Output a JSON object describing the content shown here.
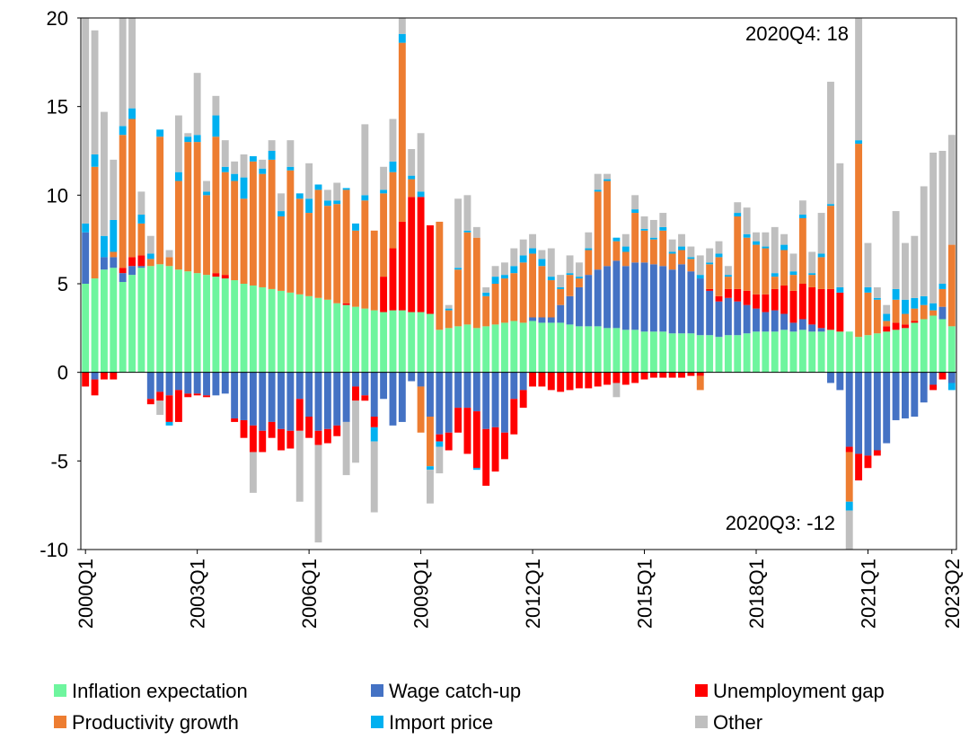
{
  "chart_data": {
    "type": "stacked_bar",
    "categories": [
      "2000Q1",
      null,
      null,
      null,
      null,
      null,
      null,
      null,
      null,
      null,
      null,
      null,
      "2003Q1",
      null,
      null,
      null,
      null,
      null,
      null,
      null,
      null,
      null,
      null,
      null,
      "2006Q1",
      null,
      null,
      null,
      null,
      null,
      null,
      null,
      null,
      null,
      null,
      null,
      "2009Q1",
      null,
      null,
      null,
      null,
      null,
      null,
      null,
      null,
      null,
      null,
      null,
      "2012Q1",
      null,
      null,
      null,
      null,
      null,
      null,
      null,
      null,
      null,
      null,
      null,
      "2015Q1",
      null,
      null,
      null,
      null,
      null,
      null,
      null,
      null,
      null,
      null,
      null,
      "2018Q1",
      null,
      null,
      null,
      null,
      null,
      null,
      null,
      null,
      null,
      null,
      null,
      "2021Q1",
      null,
      null,
      null,
      null,
      null,
      null,
      null,
      null,
      "2023Q2"
    ],
    "ylim": [
      -10,
      20
    ],
    "yticks": [
      -10,
      -5,
      0,
      5,
      10,
      15,
      20
    ],
    "annotations": [
      "2020Q4: 18",
      "2020Q3: -12"
    ],
    "series": [
      {
        "name": "Inflation expectation",
        "color": "#6ef59e",
        "values": [
          5.0,
          5.3,
          5.8,
          5.9,
          5.1,
          5.5,
          5.9,
          6.0,
          6.1,
          6.0,
          5.8,
          5.7,
          5.6,
          5.5,
          5.4,
          5.3,
          5.2,
          5.0,
          4.9,
          4.8,
          4.7,
          4.6,
          4.5,
          4.4,
          4.3,
          4.2,
          4.1,
          3.9,
          3.8,
          3.7,
          3.6,
          3.5,
          3.4,
          3.5,
          3.5,
          3.4,
          3.4,
          3.3,
          2.4,
          2.5,
          2.6,
          2.7,
          2.5,
          2.6,
          2.7,
          2.8,
          2.9,
          2.8,
          2.9,
          2.8,
          2.8,
          2.8,
          2.7,
          2.6,
          2.6,
          2.6,
          2.5,
          2.5,
          2.4,
          2.4,
          2.3,
          2.3,
          2.3,
          2.2,
          2.2,
          2.2,
          2.1,
          2.1,
          2.0,
          2.1,
          2.1,
          2.2,
          2.3,
          2.3,
          2.3,
          2.4,
          2.3,
          2.4,
          2.3,
          2.3,
          2.4,
          2.3,
          2.3,
          2.0,
          2.1,
          2.2,
          2.3,
          2.4,
          2.5,
          2.8,
          3.0,
          3.2,
          3.0,
          2.6
        ]
      },
      {
        "name": "Wage catch-up",
        "color": "#4472c4",
        "values": [
          2.9,
          -0.4,
          0.7,
          0.6,
          0.5,
          0.5,
          0.1,
          -1.5,
          -1.1,
          -1.3,
          -1.0,
          -1.2,
          -1.2,
          -1.3,
          -1.3,
          -1.2,
          -2.6,
          -2.7,
          -3.0,
          -3.3,
          -2.8,
          -3.2,
          -3.3,
          -1.5,
          -2.5,
          -3.3,
          -3.2,
          -3.0,
          -2.8,
          -0.8,
          -1.3,
          -2.5,
          -1.5,
          -3.0,
          -2.8,
          -0.5,
          -0.8,
          -2.5,
          -3.5,
          -3.4,
          -2.0,
          -2.0,
          -2.2,
          -3.2,
          -3.1,
          -3.4,
          -1.5,
          -1.0,
          0.2,
          0.3,
          0.3,
          1.0,
          1.6,
          2.2,
          2.9,
          3.2,
          3.5,
          3.8,
          3.6,
          3.8,
          3.9,
          3.8,
          3.7,
          3.6,
          3.9,
          3.5,
          3.2,
          2.5,
          2.0,
          2.1,
          1.9,
          1.6,
          1.3,
          1.1,
          1.2,
          0.9,
          0.5,
          0.6,
          0.4,
          0.2,
          -0.6,
          -1.0,
          -4.2,
          -4.6,
          -4.7,
          -4.4,
          -4.0,
          -2.7,
          -2.6,
          -2.5,
          -1.7,
          -0.7,
          0.7,
          -0.6
        ]
      },
      {
        "name": "Unemployment gap",
        "color": "#ff0000",
        "values": [
          -0.8,
          -0.9,
          -0.4,
          -0.4,
          0.3,
          0.5,
          0.6,
          -0.3,
          -0.5,
          -1.5,
          -1.8,
          -0.2,
          -0.1,
          -0.1,
          0.2,
          0.2,
          -0.2,
          -1.0,
          -1.5,
          -1.2,
          -0.9,
          -1.2,
          -1.0,
          -1.8,
          -1.2,
          -0.8,
          -0.8,
          -0.6,
          0.1,
          -0.8,
          -0.3,
          -0.6,
          2.0,
          3.5,
          5.0,
          6.5,
          6.5,
          5.0,
          -0.4,
          -1.0,
          -1.4,
          -2.6,
          -3.2,
          -3.2,
          -2.5,
          -1.5,
          -2.0,
          -1.0,
          -0.8,
          -0.8,
          -1.0,
          -1.1,
          -1.0,
          -0.9,
          -0.9,
          -0.8,
          -0.7,
          -0.6,
          -0.7,
          -0.6,
          -0.4,
          -0.3,
          -0.3,
          -0.3,
          -0.3,
          -0.2,
          -0.2,
          0.1,
          0.3,
          0.5,
          0.7,
          0.8,
          0.8,
          1.0,
          1.2,
          1.6,
          1.8,
          2.0,
          2.1,
          2.2,
          2.3,
          2.2,
          -0.3,
          -1.5,
          -0.7,
          -0.3,
          0.3,
          0.4,
          0.2,
          0.1,
          0,
          -0.3,
          -0.4,
          0
        ]
      },
      {
        "name": "Productivity growth",
        "color": "#ed7d31",
        "values": [
          0,
          6.3,
          0,
          0.3,
          7.5,
          7.8,
          1.8,
          0.4,
          7.2,
          0.5,
          5.0,
          7.3,
          7.4,
          4.5,
          7.7,
          5.8,
          5.6,
          4.8,
          7.0,
          6.4,
          7.3,
          4.2,
          6.9,
          5.4,
          4.7,
          6.1,
          5.3,
          5.6,
          6.4,
          4.3,
          6.1,
          4.5,
          4.7,
          4.3,
          10.1,
          1.0,
          -2.6,
          -2.8,
          6.1,
          1.0,
          3.2,
          5.2,
          5.1,
          1.7,
          2.3,
          2.5,
          2.7,
          3.4,
          3.6,
          2.9,
          2.1,
          0.9,
          1.2,
          0.5,
          1.4,
          4.4,
          4.8,
          1.1,
          0.8,
          2.8,
          1.8,
          1.4,
          2.0,
          0.9,
          0.8,
          0.7,
          -0.8,
          1.4,
          2.2,
          0.7,
          4.1,
          3.0,
          2.8,
          2.6,
          0.7,
          2.0,
          0.9,
          3.7,
          0.7,
          1.8,
          4.7,
          0,
          -2.8,
          10.9,
          2.4,
          1.9,
          0.3,
          1.3,
          0.6,
          0.7,
          0.8,
          0.3,
          1.0,
          4.6
        ]
      },
      {
        "name": "Import price",
        "color": "#00b0f0",
        "values": [
          0.5,
          0.7,
          1.2,
          1.8,
          0.5,
          0.6,
          0.5,
          0.3,
          0.4,
          -0.2,
          0.5,
          0.3,
          0.4,
          0.2,
          1.2,
          0.3,
          0.4,
          1.2,
          0.3,
          0.3,
          0.5,
          0.3,
          0.2,
          0.3,
          0.8,
          0.3,
          0.3,
          0.2,
          0.1,
          0.4,
          0.3,
          -0.8,
          0.2,
          0.6,
          0.5,
          0.2,
          0.3,
          -0.2,
          -0.3,
          0.1,
          0.1,
          0.1,
          -0.1,
          0.2,
          0.4,
          0.2,
          0.4,
          0.4,
          0.3,
          0.4,
          0.2,
          0.1,
          0.1,
          0.1,
          0.1,
          0.1,
          0.1,
          0.2,
          0.3,
          0.2,
          0.1,
          0.1,
          0.2,
          0.1,
          0.2,
          0.1,
          0.2,
          0.1,
          0.2,
          0.1,
          0.2,
          0.2,
          0.2,
          0.1,
          0.2,
          0.3,
          0.2,
          0.2,
          0.1,
          0.2,
          0.1,
          0.3,
          -0.5,
          0.2,
          0.3,
          0.1,
          0.4,
          0.6,
          0.8,
          0.6,
          0.5,
          0.4,
          0.3,
          -0.4
        ]
      },
      {
        "name": "Other",
        "color": "#bfbfbf",
        "values": [
          12,
          7,
          7,
          3.4,
          7,
          6,
          1.3,
          1,
          -0.8,
          0.4,
          3.2,
          0.2,
          3.5,
          0.6,
          1.1,
          1.5,
          0.7,
          1.3,
          -2.3,
          0.5,
          0.6,
          1.0,
          1.5,
          -4.0,
          2.0,
          -5.5,
          0.6,
          1.0,
          -3.0,
          -3.5,
          4.0,
          -4.0,
          1.3,
          2.4,
          1.0,
          1.5,
          3.3,
          -1.9,
          -1.5,
          0.2,
          3.9,
          2.0,
          0.6,
          0.3,
          0.6,
          0.7,
          1.0,
          0.9,
          0.8,
          0.5,
          1.6,
          0.7,
          1.0,
          0.8,
          0.9,
          0.9,
          0.3,
          -0.8,
          0.7,
          0.8,
          0.7,
          1.0,
          0.8,
          0.7,
          0.7,
          0.6,
          1.1,
          0.8,
          0.7,
          0.5,
          0.6,
          1.5,
          0.5,
          0.8,
          2.6,
          0.6,
          1.0,
          0.8,
          1.2,
          2.3,
          6.9,
          7.0,
          -2.5,
          9,
          2.5,
          0.6,
          0.5,
          4.4,
          3.2,
          3.5,
          6.2,
          8.5,
          7.5,
          6.2
        ]
      }
    ]
  }
}
